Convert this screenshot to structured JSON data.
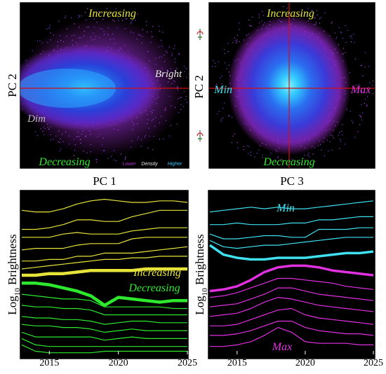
{
  "panels": {
    "pc1_pc2": {
      "xlabel": "PC 1",
      "ylabel": "PC 2",
      "top_label": "Increasing",
      "bottom_label": "Decreasing",
      "left_label": "Dim",
      "right_label": "Bright",
      "legend": {
        "lower": "Lower",
        "mid": "Density",
        "higher": "Higher"
      }
    },
    "pc3_pc2": {
      "xlabel": "PC 3",
      "ylabel": "PC 2",
      "top_label": "Increasing",
      "bottom_label": "Decreasing",
      "left_label": "Min",
      "right_label": "Max"
    },
    "brightness_left": {
      "ylabel_main": "Log",
      "ylabel_sub": "10",
      "ylabel_rest": " Brightness",
      "label_increasing": "Increasing",
      "label_decreasing": "Decreasing",
      "xticks": [
        "2015",
        "2020",
        "2025"
      ]
    },
    "brightness_right": {
      "ylabel_main": "Log",
      "ylabel_sub": "10",
      "ylabel_rest": " Brightness",
      "label_min": "Min",
      "label_max": "Max",
      "xticks": [
        "2015",
        "2020",
        "2025"
      ]
    }
  },
  "colors": {
    "yellow": "#e6e43a",
    "green": "#2ee82e",
    "cyan": "#3fe0f0",
    "magenta": "#e030e0",
    "white_label": "#e0e0e0",
    "crosshair": "#d01010"
  },
  "chart_data": [
    {
      "type": "scatter",
      "title": "",
      "xlabel": "PC 1",
      "ylabel": "PC 2",
      "description_values": {
        "density_legend": [
          "Lower",
          "Density",
          "Higher"
        ]
      }
    },
    {
      "type": "scatter",
      "title": "",
      "xlabel": "PC 3",
      "ylabel": "PC 2"
    },
    {
      "type": "line",
      "ylabel": "Log10 Brightness",
      "x": [
        2013,
        2014,
        2015,
        2016,
        2017,
        2018,
        2019,
        2020,
        2021,
        2022,
        2023,
        2024,
        2025
      ],
      "xlim": [
        2013,
        2025
      ],
      "xticks": [
        2015,
        2020,
        2025
      ],
      "series": [
        {
          "group": "Increasing",
          "values": [
            0.91,
            0.9,
            0.9,
            0.92,
            0.95,
            0.97,
            0.98,
            0.97,
            0.96,
            0.96,
            0.97,
            0.97,
            0.96
          ]
        },
        {
          "group": "Increasing",
          "values": [
            0.79,
            0.79,
            0.8,
            0.82,
            0.85,
            0.85,
            0.84,
            0.84,
            0.87,
            0.89,
            0.91,
            0.91,
            0.91
          ]
        },
        {
          "group": "Increasing",
          "values": [
            0.74,
            0.74,
            0.74,
            0.76,
            0.77,
            0.76,
            0.76,
            0.76,
            0.78,
            0.79,
            0.8,
            0.8,
            0.8
          ]
        },
        {
          "group": "Increasing",
          "values": [
            0.66,
            0.67,
            0.67,
            0.67,
            0.69,
            0.7,
            0.7,
            0.7,
            0.73,
            0.74,
            0.74,
            0.74,
            0.74
          ]
        },
        {
          "group": "Increasing",
          "values": [
            0.59,
            0.59,
            0.6,
            0.6,
            0.62,
            0.62,
            0.64,
            0.64,
            0.64,
            0.65,
            0.66,
            0.67,
            0.68
          ]
        },
        {
          "group": "Increasing",
          "values": [
            0.54,
            0.55,
            0.56,
            0.57,
            0.58,
            0.59,
            0.6,
            0.6,
            0.61,
            0.61,
            0.62,
            0.62,
            0.62
          ]
        },
        {
          "group": "Increasing-mean",
          "values": [
            0.5,
            0.5,
            0.51,
            0.51,
            0.52,
            0.53,
            0.53,
            0.53,
            0.53,
            0.54,
            0.54,
            0.54,
            0.54
          ]
        },
        {
          "group": "Decreasing-mean",
          "values": [
            0.45,
            0.45,
            0.44,
            0.42,
            0.4,
            0.37,
            0.31,
            0.36,
            0.35,
            0.34,
            0.33,
            0.34,
            0.34
          ]
        },
        {
          "group": "Decreasing",
          "values": [
            0.38,
            0.37,
            0.36,
            0.35,
            0.35,
            0.34,
            0.3,
            0.3,
            0.3,
            0.3,
            0.3,
            0.29,
            0.29
          ]
        },
        {
          "group": "Decreasing",
          "values": [
            0.31,
            0.3,
            0.3,
            0.29,
            0.29,
            0.28,
            0.25,
            0.25,
            0.25,
            0.25,
            0.25,
            0.25,
            0.25
          ]
        },
        {
          "group": "Decreasing",
          "values": [
            0.24,
            0.23,
            0.23,
            0.22,
            0.22,
            0.21,
            0.19,
            0.2,
            0.21,
            0.21,
            0.2,
            0.2,
            0.2
          ]
        },
        {
          "group": "Decreasing",
          "values": [
            0.19,
            0.18,
            0.18,
            0.17,
            0.17,
            0.16,
            0.14,
            0.15,
            0.16,
            0.15,
            0.15,
            0.15,
            0.15
          ]
        },
        {
          "group": "Decreasing",
          "values": [
            0.14,
            0.11,
            0.11,
            0.11,
            0.11,
            0.11,
            0.09,
            0.1,
            0.11,
            0.1,
            0.1,
            0.1,
            0.1
          ]
        },
        {
          "group": "Decreasing",
          "values": [
            0.1,
            0.06,
            0.05,
            0.05,
            0.05,
            0.05,
            0.05,
            0.05,
            0.05,
            0.05,
            0.05,
            0.05,
            0.05
          ]
        },
        {
          "group": "Decreasing",
          "values": [
            0.06,
            0.02,
            0.01,
            0.01,
            0.01,
            0.01,
            0.02,
            0.02,
            0.02,
            0.02,
            0.02,
            0.02,
            0.02
          ]
        }
      ]
    },
    {
      "type": "line",
      "ylabel": "Log10 Brightness",
      "x": [
        2013,
        2014,
        2015,
        2016,
        2017,
        2018,
        2019,
        2020,
        2021,
        2022,
        2023,
        2024,
        2025
      ],
      "xlim": [
        2013,
        2025
      ],
      "xticks": [
        2015,
        2020,
        2025
      ],
      "series": [
        {
          "group": "Min",
          "values": [
            0.9,
            0.91,
            0.92,
            0.93,
            0.92,
            0.93,
            0.92,
            0.92,
            0.93,
            0.94,
            0.95,
            0.96,
            0.97
          ]
        },
        {
          "group": "Min",
          "values": [
            0.82,
            0.82,
            0.83,
            0.82,
            0.82,
            0.82,
            0.83,
            0.83,
            0.85,
            0.85,
            0.86,
            0.87,
            0.87
          ]
        },
        {
          "group": "Min",
          "values": [
            0.76,
            0.73,
            0.73,
            0.74,
            0.75,
            0.75,
            0.74,
            0.74,
            0.79,
            0.79,
            0.79,
            0.8,
            0.8
          ]
        },
        {
          "group": "Min",
          "values": [
            0.72,
            0.68,
            0.67,
            0.68,
            0.69,
            0.69,
            0.7,
            0.71,
            0.72,
            0.73,
            0.74,
            0.74,
            0.74
          ]
        },
        {
          "group": "Min-mean",
          "values": [
            0.69,
            0.63,
            0.61,
            0.6,
            0.6,
            0.61,
            0.61,
            0.61,
            0.62,
            0.63,
            0.64,
            0.64,
            0.65
          ]
        },
        {
          "group": "Max-mean",
          "values": [
            0.4,
            0.41,
            0.43,
            0.47,
            0.52,
            0.55,
            0.56,
            0.56,
            0.55,
            0.53,
            0.52,
            0.51,
            0.5
          ]
        },
        {
          "group": "Max",
          "values": [
            0.36,
            0.37,
            0.39,
            0.42,
            0.45,
            0.48,
            0.48,
            0.47,
            0.46,
            0.45,
            0.43,
            0.42,
            0.41
          ]
        },
        {
          "group": "Max",
          "values": [
            0.3,
            0.31,
            0.32,
            0.35,
            0.38,
            0.42,
            0.42,
            0.4,
            0.38,
            0.37,
            0.36,
            0.35,
            0.34
          ]
        },
        {
          "group": "Max",
          "values": [
            0.24,
            0.25,
            0.26,
            0.29,
            0.33,
            0.36,
            0.35,
            0.33,
            0.31,
            0.3,
            0.29,
            0.28,
            0.27
          ]
        },
        {
          "group": "Max",
          "values": [
            0.18,
            0.18,
            0.19,
            0.22,
            0.25,
            0.28,
            0.29,
            0.25,
            0.23,
            0.22,
            0.21,
            0.2,
            0.19
          ]
        },
        {
          "group": "Max",
          "values": [
            0.12,
            0.12,
            0.13,
            0.15,
            0.18,
            0.21,
            0.21,
            0.17,
            0.15,
            0.14,
            0.13,
            0.13,
            0.12
          ]
        },
        {
          "group": "Max",
          "values": [
            0.05,
            0.05,
            0.06,
            0.08,
            0.12,
            0.17,
            0.14,
            0.08,
            0.07,
            0.07,
            0.07,
            0.06,
            0.06
          ]
        }
      ]
    }
  ]
}
